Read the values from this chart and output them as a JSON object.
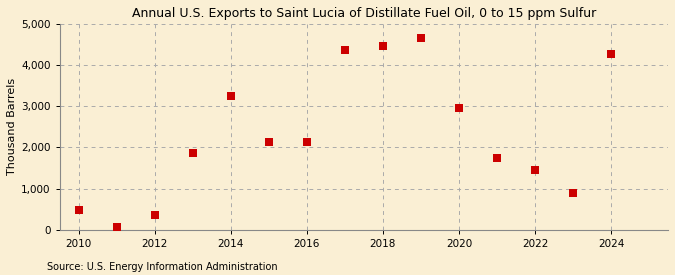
{
  "title": "Annual U.S. Exports to Saint Lucia of Distillate Fuel Oil, 0 to 15 ppm Sulfur",
  "ylabel": "Thousand Barrels",
  "source": "Source: U.S. Energy Information Administration",
  "years": [
    2010,
    2011,
    2012,
    2013,
    2014,
    2015,
    2016,
    2017,
    2018,
    2019,
    2020,
    2021,
    2022,
    2023,
    2024
  ],
  "values": [
    480,
    75,
    370,
    1870,
    3250,
    2130,
    2130,
    4370,
    4470,
    4650,
    2950,
    1750,
    1440,
    900,
    4280
  ],
  "marker_color": "#cc0000",
  "marker_size": 28,
  "background_color": "#faefd4",
  "grid_color": "#aaaaaa",
  "ylim": [
    0,
    5000
  ],
  "yticks": [
    0,
    1000,
    2000,
    3000,
    4000,
    5000
  ],
  "xlim": [
    2009.5,
    2025.5
  ],
  "xticks": [
    2010,
    2012,
    2014,
    2016,
    2018,
    2020,
    2022,
    2024
  ],
  "title_fontsize": 9,
  "label_fontsize": 8,
  "tick_fontsize": 7.5,
  "source_fontsize": 7
}
